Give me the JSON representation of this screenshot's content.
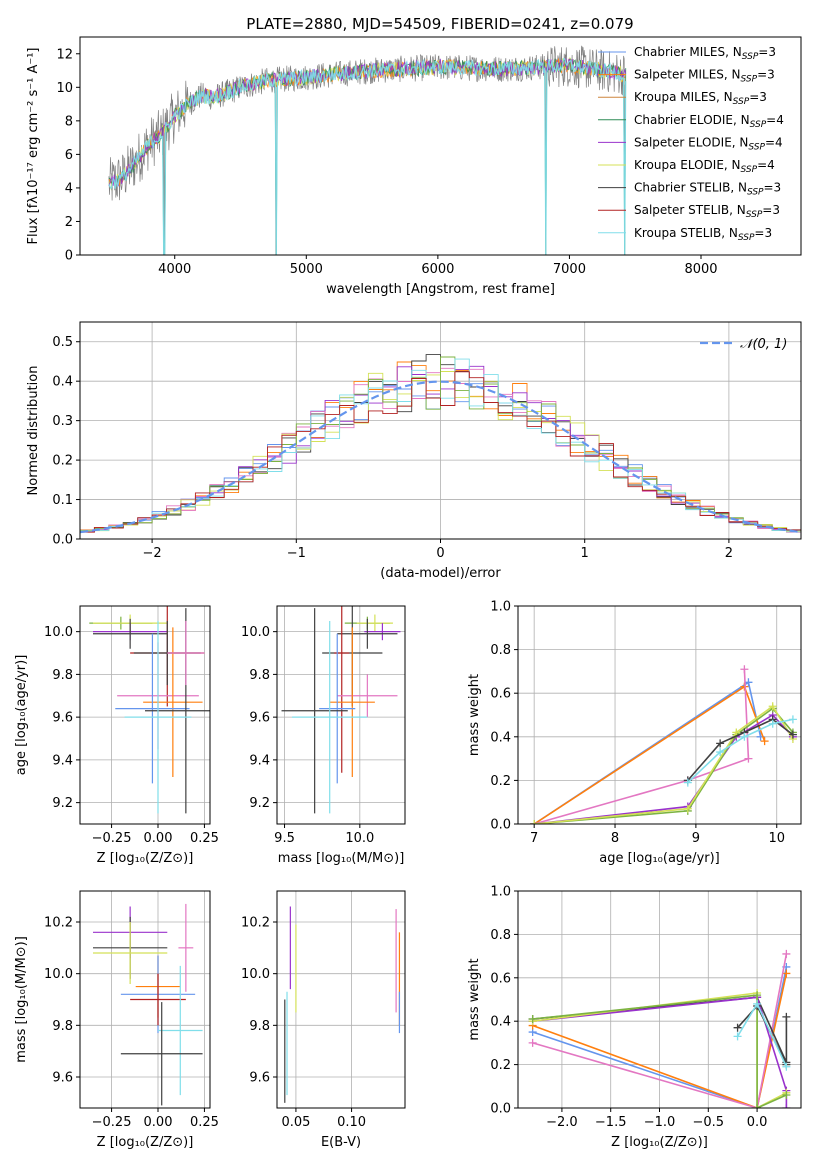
{
  "title": "PLATE=2880, MJD=54509, FIBERID=0241, z=0.079",
  "colors": {
    "Chabrier MILES": "#6495ed",
    "Salpeter MILES": "#ff7f0e",
    "Kroupa MILES": "#cd853f",
    "Chabrier ELODIE": "#2e8b57",
    "Salpeter ELODIE": "#9932cc",
    "Kroupa ELODIE": "#d4e157",
    "Chabrier STELIB": "#404040",
    "Salpeter STELIB": "#b22222",
    "Kroupa STELIB": "#80deea",
    "data": "#808080",
    "pink": "#e377c2",
    "green": "#7cb342"
  },
  "chart_data": [
    {
      "id": "spectrum",
      "type": "line",
      "xlabel": "wavelength [Angstrom, rest frame]",
      "ylabel": "Flux [fλ10⁻¹⁷ erg cm⁻² s⁻¹ A⁻¹]",
      "xlim": [
        3280,
        8760
      ],
      "ylim": [
        0,
        13
      ],
      "xticks": [
        4000,
        5000,
        6000,
        7000,
        8000
      ],
      "yticks": [
        0,
        2,
        4,
        6,
        8,
        10,
        12
      ],
      "grid": false,
      "legend_position": "right",
      "legend": [
        "Chabrier MILES, N_SSP=3",
        "Salpeter MILES, N_SSP=3",
        "Kroupa MILES, N_SSP=3",
        "Chabrier ELODIE, N_SSP=4",
        "Salpeter ELODIE, N_SSP=4",
        "Kroupa ELODIE, N_SSP=4",
        "Chabrier STELIB, N_SSP=3",
        "Salpeter STELIB, N_SSP=3",
        "Kroupa STELIB, N_SSP=3"
      ],
      "continuum": {
        "x": [
          3500,
          3600,
          3700,
          3800,
          3900,
          4000,
          4100,
          4200,
          4300,
          4500,
          4700,
          5000,
          5500,
          6000,
          6500,
          7000,
          7400
        ],
        "y": [
          4.2,
          4.6,
          5.5,
          6.6,
          7.2,
          8.3,
          9.0,
          9.5,
          9.4,
          10.0,
          10.4,
          10.6,
          11.0,
          11.2,
          11.1,
          11.3,
          10.8
        ]
      },
      "spikes": [
        {
          "x": 3920,
          "y": 0
        },
        {
          "x": 4770,
          "y": 0
        },
        {
          "x": 6820,
          "y": 0
        },
        {
          "x": 7420,
          "y": 0
        }
      ]
    },
    {
      "id": "residuals",
      "type": "bar",
      "xlabel": "(data-model)/error",
      "ylabel": "Normed distribution",
      "xlim": [
        -2.5,
        2.5
      ],
      "ylim": [
        0,
        0.55
      ],
      "xticks": [
        -2,
        -1,
        0,
        1,
        2
      ],
      "yticks": [
        0.0,
        0.1,
        0.2,
        0.3,
        0.4,
        0.5
      ],
      "grid": true,
      "legend_position": "top-right",
      "legend": [
        "𝒩(0, 1)"
      ],
      "gaussian": {
        "mu": 0,
        "sigma": 1
      }
    },
    {
      "id": "z-age",
      "type": "scatter",
      "xlabel": "Z [log₁₀(Z/Z⊙)]",
      "ylabel": "age  [log₁₀(age/yr)]",
      "xlim": [
        -0.42,
        0.28
      ],
      "ylim": [
        9.1,
        10.12
      ],
      "xticks": [
        -0.25,
        0.0,
        0.25
      ],
      "yticks": [
        9.2,
        9.4,
        9.6,
        9.8,
        10.0
      ],
      "grid": true,
      "points": [
        {
          "x": -0.2,
          "y": 10.04,
          "dx": 0.17,
          "dy": 0.03,
          "color": "green"
        },
        {
          "x": -0.15,
          "y": 10.04,
          "dx": 0.2,
          "dy": 0.04,
          "color": "Kroupa ELODIE"
        },
        {
          "x": -0.15,
          "y": 10.0,
          "dx": 0.2,
          "dy": 0.04,
          "color": "Salpeter ELODIE"
        },
        {
          "x": -0.15,
          "y": 9.99,
          "dx": 0.2,
          "dy": 0.07,
          "color": "Chabrier STELIB"
        },
        {
          "x": 0.05,
          "y": 9.9,
          "dx": 0.2,
          "dy": 0.25,
          "color": "Salpeter STELIB"
        },
        {
          "x": 0.05,
          "y": 9.9,
          "dx": 0.18,
          "dy": 0.15,
          "color": "Chabrier STELIB"
        },
        {
          "x": 0.0,
          "y": 9.7,
          "dx": 0.22,
          "dy": 0.25,
          "color": "pink"
        },
        {
          "x": 0.08,
          "y": 9.67,
          "dx": 0.16,
          "dy": 0.35,
          "color": "Salpeter MILES"
        },
        {
          "x": -0.03,
          "y": 9.64,
          "dx": 0.2,
          "dy": 0.35,
          "color": "Chabrier MILES"
        },
        {
          "x": 0.15,
          "y": 9.63,
          "dx": 0.22,
          "dy": 0.48,
          "color": "Chabrier STELIB"
        },
        {
          "x": 0.0,
          "y": 9.6,
          "dx": 0.18,
          "dy": 0.45,
          "color": "Kroupa STELIB"
        },
        {
          "x": 0.15,
          "y": 9.9,
          "dx": 0.1,
          "dy": 0.15,
          "color": "pink"
        }
      ]
    },
    {
      "id": "mass-age",
      "type": "scatter",
      "xlabel": "mass [log₁₀(M/M⊙)]",
      "ylabel": "",
      "xlim": [
        9.45,
        10.3
      ],
      "ylim": [
        9.1,
        10.12
      ],
      "xticks": [
        9.5,
        10.0
      ],
      "yticks": [
        9.2,
        9.4,
        9.6,
        9.8,
        10.0
      ],
      "grid": true,
      "points": [
        {
          "x": 10.05,
          "y": 10.04,
          "dx": 0.15,
          "dy": 0.03,
          "color": "green"
        },
        {
          "x": 10.1,
          "y": 10.04,
          "dx": 0.12,
          "dy": 0.04,
          "color": "Kroupa ELODIE"
        },
        {
          "x": 10.15,
          "y": 10.0,
          "dx": 0.12,
          "dy": 0.04,
          "color": "Salpeter ELODIE"
        },
        {
          "x": 10.05,
          "y": 9.99,
          "dx": 0.2,
          "dy": 0.07,
          "color": "Chabrier STELIB"
        },
        {
          "x": 9.95,
          "y": 9.9,
          "dx": 0.2,
          "dy": 0.25,
          "color": "Chabrier STELIB"
        },
        {
          "x": 9.88,
          "y": 9.9,
          "dx": 0.05,
          "dy": 0.56,
          "color": "Salpeter STELIB"
        },
        {
          "x": 10.05,
          "y": 9.7,
          "dx": 0.2,
          "dy": 0.1,
          "color": "pink"
        },
        {
          "x": 9.95,
          "y": 9.67,
          "dx": 0.15,
          "dy": 0.35,
          "color": "Salpeter MILES"
        },
        {
          "x": 9.85,
          "y": 9.64,
          "dx": 0.12,
          "dy": 0.35,
          "color": "Chabrier MILES"
        },
        {
          "x": 9.7,
          "y": 9.63,
          "dx": 0.22,
          "dy": 0.48,
          "color": "Chabrier STELIB"
        },
        {
          "x": 9.8,
          "y": 9.6,
          "dx": 0.25,
          "dy": 0.45,
          "color": "Kroupa STELIB"
        }
      ]
    },
    {
      "id": "age-weight",
      "type": "line",
      "xlabel": "age  [log₁₀(age/yr)]",
      "ylabel": "mass weight",
      "xlim": [
        6.8,
        10.3
      ],
      "ylim": [
        0,
        1.0
      ],
      "xticks": [
        7,
        8,
        9,
        10
      ],
      "yticks": [
        0.0,
        0.2,
        0.4,
        0.6,
        0.8,
        1.0
      ],
      "grid": true,
      "series": [
        {
          "color": "Chabrier MILES",
          "x": [
            7.0,
            9.65,
            9.8
          ],
          "y": [
            0.0,
            0.65,
            0.4
          ]
        },
        {
          "color": "Salpeter MILES",
          "x": [
            7.0,
            9.6,
            9.85
          ],
          "y": [
            0.0,
            0.63,
            0.38
          ]
        },
        {
          "color": "pink",
          "x": [
            7.0,
            8.9,
            9.65,
            9.6
          ],
          "y": [
            0.0,
            0.2,
            0.3,
            0.71
          ]
        },
        {
          "color": "Salpeter ELODIE",
          "x": [
            7.0,
            8.9,
            9.5,
            9.95,
            10.2
          ],
          "y": [
            0.0,
            0.08,
            0.4,
            0.5,
            0.4
          ]
        },
        {
          "color": "green",
          "x": [
            7.0,
            8.9,
            9.5,
            9.95,
            10.2
          ],
          "y": [
            0.0,
            0.06,
            0.41,
            0.53,
            0.42
          ]
        },
        {
          "color": "Kroupa ELODIE",
          "x": [
            7.0,
            8.9,
            9.5,
            9.95,
            10.2
          ],
          "y": [
            0.0,
            0.07,
            0.42,
            0.54,
            0.39
          ]
        },
        {
          "color": "Chabrier STELIB",
          "x": [
            8.9,
            9.3,
            9.6,
            9.95,
            10.2
          ],
          "y": [
            0.2,
            0.37,
            0.42,
            0.48,
            0.41
          ]
        },
        {
          "color": "Kroupa STELIB",
          "x": [
            8.9,
            9.3,
            9.6,
            9.95,
            10.2
          ],
          "y": [
            0.19,
            0.33,
            0.4,
            0.46,
            0.48
          ]
        }
      ]
    },
    {
      "id": "z-mass",
      "type": "scatter",
      "xlabel": "Z [log₁₀(Z/Z⊙)]",
      "ylabel": "mass [log₁₀(M/M⊙)]",
      "xlim": [
        -0.42,
        0.28
      ],
      "ylim": [
        9.48,
        10.32
      ],
      "xticks": [
        -0.25,
        0.0,
        0.25
      ],
      "yticks": [
        9.6,
        9.8,
        10.0,
        10.2
      ],
      "grid": true,
      "points": [
        {
          "x": -0.15,
          "y": 10.16,
          "dx": 0.2,
          "dy": 0.1,
          "color": "Salpeter ELODIE"
        },
        {
          "x": -0.15,
          "y": 10.1,
          "dx": 0.2,
          "dy": 0.12,
          "color": "Chabrier STELIB"
        },
        {
          "x": -0.15,
          "y": 10.08,
          "dx": 0.2,
          "dy": 0.12,
          "color": "Kroupa ELODIE"
        },
        {
          "x": 0.0,
          "y": 9.95,
          "dx": 0.12,
          "dy": 0.12,
          "color": "Salpeter MILES"
        },
        {
          "x": 0.0,
          "y": 9.92,
          "dx": 0.2,
          "dy": 0.15,
          "color": "Chabrier MILES"
        },
        {
          "x": 0.0,
          "y": 9.9,
          "dx": 0.15,
          "dy": 0.1,
          "color": "Salpeter STELIB"
        },
        {
          "x": 0.12,
          "y": 9.78,
          "dx": 0.12,
          "dy": 0.25,
          "color": "Kroupa STELIB"
        },
        {
          "x": 0.02,
          "y": 9.69,
          "dx": 0.22,
          "dy": 0.2,
          "color": "Chabrier STELIB"
        },
        {
          "x": 0.15,
          "y": 10.1,
          "dx": 0.04,
          "dy": 0.17,
          "color": "pink"
        }
      ]
    },
    {
      "id": "ebv-mass",
      "type": "scatter",
      "xlabel": "E(B-V)",
      "ylabel": "",
      "xlim": [
        0.033,
        0.148
      ],
      "ylim": [
        9.48,
        10.32
      ],
      "xticks": [
        0.05,
        0.1
      ],
      "yticks": [
        9.6,
        9.8,
        10.0,
        10.2
      ],
      "grid": true,
      "points": [
        {
          "x": 0.045,
          "y": 10.1,
          "dx": 0,
          "dy": 0.16,
          "color": "Salpeter ELODIE"
        },
        {
          "x": 0.05,
          "y": 10.02,
          "dx": 0,
          "dy": 0.17,
          "color": "Kroupa ELODIE"
        },
        {
          "x": 0.042,
          "y": 9.73,
          "dx": 0,
          "dy": 0.2,
          "color": "Kroupa STELIB"
        },
        {
          "x": 0.04,
          "y": 9.7,
          "dx": 0,
          "dy": 0.2,
          "color": "Chabrier STELIB"
        },
        {
          "x": 0.14,
          "y": 10.05,
          "dx": 0,
          "dy": 0.2,
          "color": "pink"
        },
        {
          "x": 0.143,
          "y": 9.98,
          "dx": 0,
          "dy": 0.18,
          "color": "Salpeter MILES"
        },
        {
          "x": 0.143,
          "y": 9.85,
          "dx": 0,
          "dy": 0.08,
          "color": "Chabrier MILES"
        }
      ]
    },
    {
      "id": "z-weight",
      "type": "line",
      "xlabel": "Z [log₁₀(Z/Z⊙)]",
      "ylabel": "mass weight",
      "xlim": [
        -2.45,
        0.45
      ],
      "ylim": [
        0,
        1.0
      ],
      "xticks": [
        -2.0,
        -1.5,
        -1.0,
        -0.5,
        0.0
      ],
      "yticks": [
        0.0,
        0.2,
        0.4,
        0.6,
        0.8,
        1.0
      ],
      "grid": true,
      "series": [
        {
          "color": "Chabrier MILES",
          "x": [
            -2.3,
            0.0,
            0.3
          ],
          "y": [
            0.35,
            0.0,
            0.65
          ]
        },
        {
          "color": "Salpeter MILES",
          "x": [
            -2.3,
            0.0,
            0.3
          ],
          "y": [
            0.38,
            0.0,
            0.62
          ]
        },
        {
          "color": "pink",
          "x": [
            -2.3,
            0.0,
            0.3
          ],
          "y": [
            0.3,
            0.0,
            0.71
          ]
        },
        {
          "color": "Chabrier STELIB",
          "x": [
            -2.3,
            0.0,
            0.3,
            0.3
          ],
          "y": [
            0.41,
            0.51,
            0.21,
            0.42
          ]
        },
        {
          "color": "Salpeter ELODIE",
          "x": [
            -2.3,
            0.0,
            0.3,
            0.3
          ],
          "y": [
            0.4,
            0.51,
            0.08,
            0.0
          ]
        },
        {
          "color": "Kroupa ELODIE",
          "x": [
            -2.3,
            0.0,
            0.0,
            0.3
          ],
          "y": [
            0.4,
            0.53,
            0.0,
            0.07
          ]
        },
        {
          "color": "green",
          "x": [
            -2.3,
            0.0,
            0.0,
            0.3
          ],
          "y": [
            0.41,
            0.52,
            0.0,
            0.06
          ]
        },
        {
          "color": "Chabrier STELIB",
          "x": [
            -0.2,
            0.0,
            0.3
          ],
          "y": [
            0.37,
            0.47,
            0.2
          ]
        },
        {
          "color": "Kroupa STELIB",
          "x": [
            -0.2,
            0.0,
            0.3
          ],
          "y": [
            0.33,
            0.48,
            0.19
          ]
        }
      ]
    }
  ]
}
